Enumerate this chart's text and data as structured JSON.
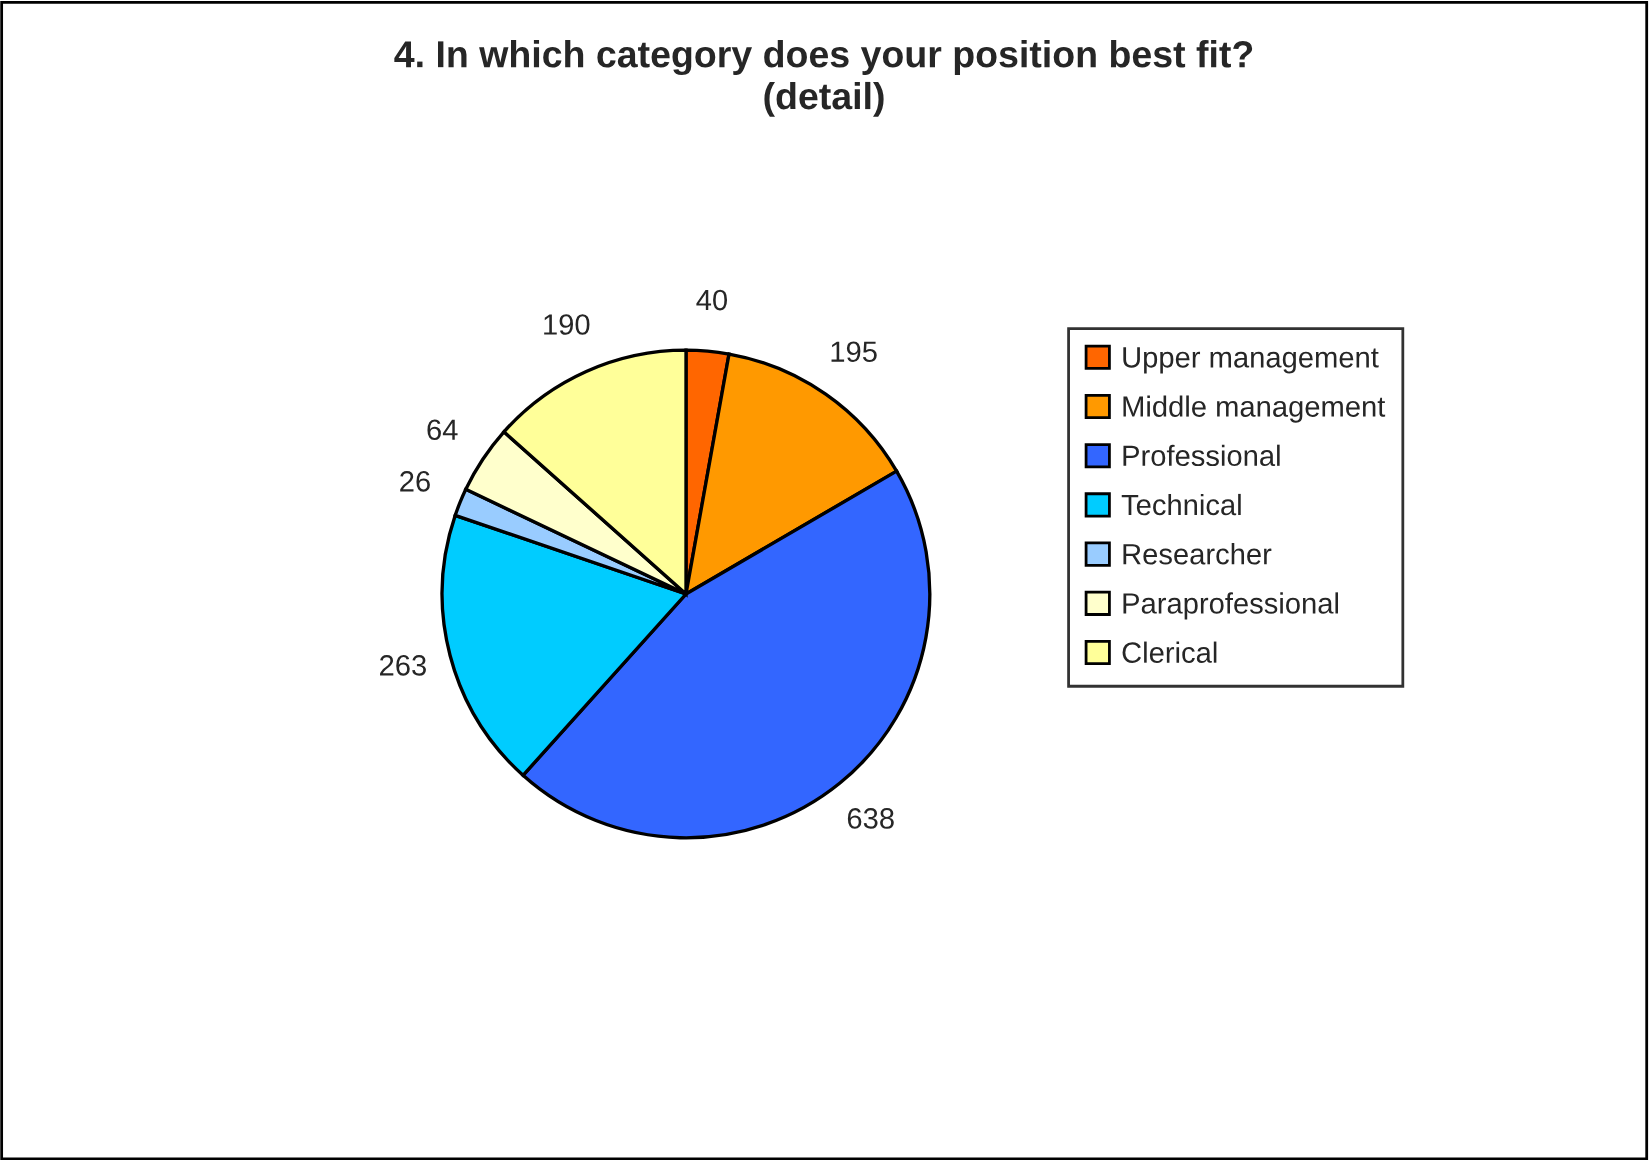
{
  "chart_data": {
    "type": "pie",
    "title": "4. In which category does your position best fit?\n(detail)",
    "categories": [
      "Upper management",
      "Middle management",
      "Professional",
      "Technical",
      "Researcher",
      "Paraprofessional",
      "Clerical"
    ],
    "values": [
      40,
      195,
      638,
      263,
      26,
      64,
      190
    ],
    "colors": [
      "#ff6600",
      "#ff9900",
      "#3366ff",
      "#00ccff",
      "#99ccff",
      "#ffffcc",
      "#ffff99"
    ],
    "data_labels": true,
    "legend": "right"
  }
}
